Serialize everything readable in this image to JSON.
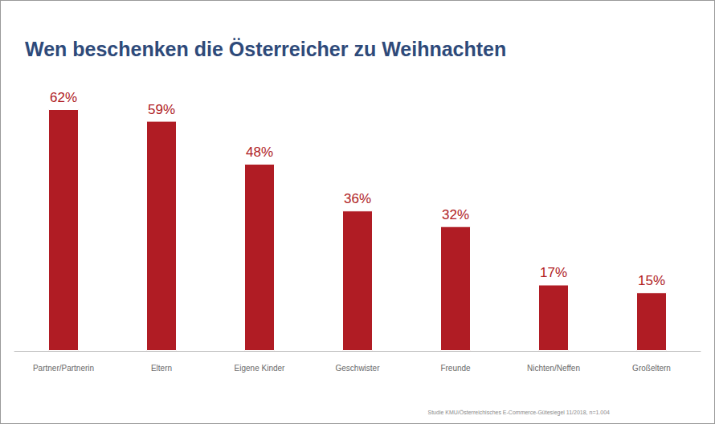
{
  "chart_data": {
    "type": "bar",
    "title": "Wen beschenken die Österreicher zu Weihnachten",
    "categories": [
      "Partner/Partnerin",
      "Eltern",
      "Eigene Kinder",
      "Geschwister",
      "Freunde",
      "Nichten/Neffen",
      "Großeltern"
    ],
    "values": [
      62,
      59,
      48,
      36,
      32,
      17,
      15
    ],
    "value_labels": [
      "62%",
      "59%",
      "48%",
      "36%",
      "32%",
      "17%",
      "15%"
    ],
    "data_labels": true,
    "color": "#b01c24",
    "ylim": [
      0,
      62
    ],
    "grid": false,
    "tick_labels": "x",
    "annotations": [
      "Studie KMU/Österreichisches E-Commerce-Gütesiegel 11/2018, n=1.004"
    ]
  }
}
